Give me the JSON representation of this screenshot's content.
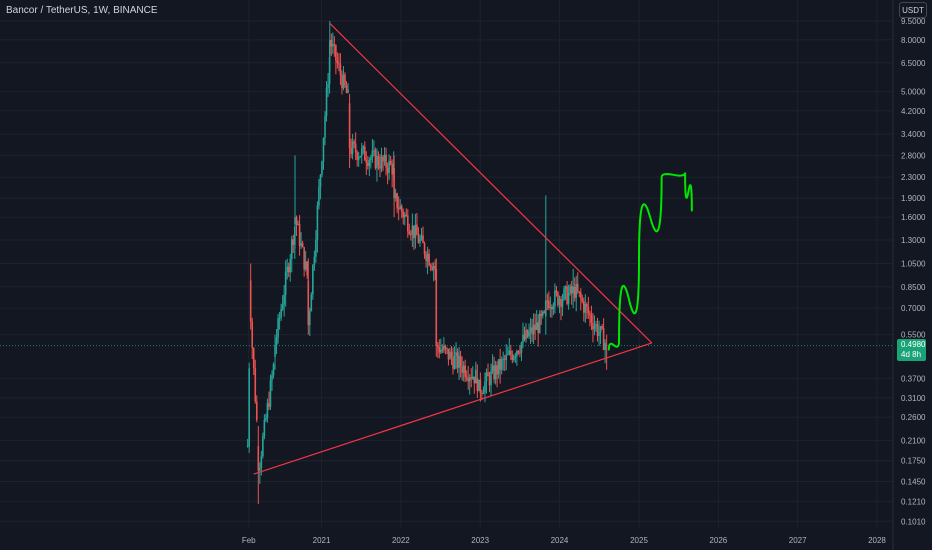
{
  "header": {
    "symbol_title": "Bancor / TetherUS, 1W, BINANCE"
  },
  "price_axis": {
    "currency": "USDT",
    "ticks": [
      "9.5000",
      "8.0000",
      "6.5000",
      "5.0000",
      "4.2000",
      "3.4000",
      "2.8000",
      "2.3000",
      "1.9000",
      "1.6000",
      "1.3000",
      "1.0500",
      "0.8500",
      "0.7000",
      "0.5500",
      "0.3700",
      "0.3100",
      "0.2600",
      "0.2100",
      "0.1750",
      "0.1450",
      "0.1210",
      "0.1010"
    ]
  },
  "time_axis": {
    "labels": [
      "Feb",
      "2021",
      "2022",
      "2023",
      "2024",
      "2025",
      "2026",
      "2027",
      "2028"
    ]
  },
  "last_price": {
    "value": "0.4980",
    "countdown": "4d 8h",
    "color": "#1aa377"
  },
  "colors": {
    "background": "#131722",
    "up_candle": "#26a69a",
    "down_candle": "#ef5350",
    "trendline": "#f23645",
    "projection": "#00e600"
  },
  "chart_data": {
    "type": "candlestick",
    "y_scale": "log",
    "ylim": [
      0.095,
      10.5
    ],
    "x_range": [
      "2020-01-01",
      "2028-06-01"
    ],
    "ohlc_weekly_approx": [
      {
        "date": "2020-01-27",
        "open": 0.2,
        "high": 0.2,
        "low": 0.2,
        "close": 0.2
      },
      {
        "date": "2020-02-10",
        "open": 0.9,
        "high": 1.05,
        "low": 0.6,
        "close": 0.62
      },
      {
        "date": "2020-03-16",
        "open": 0.2,
        "high": 0.24,
        "low": 0.118,
        "close": 0.16
      },
      {
        "date": "2020-06-01",
        "open": 0.45,
        "high": 0.55,
        "low": 0.4,
        "close": 0.5
      },
      {
        "date": "2020-09-01",
        "open": 1.5,
        "high": 2.8,
        "low": 1.2,
        "close": 1.6
      },
      {
        "date": "2020-11-01",
        "open": 0.9,
        "high": 1.1,
        "low": 0.55,
        "close": 0.6
      },
      {
        "date": "2021-02-08",
        "open": 7.0,
        "high": 9.5,
        "low": 6.0,
        "close": 8.0
      },
      {
        "date": "2021-05-10",
        "open": 4.5,
        "high": 4.9,
        "low": 2.5,
        "close": 3.0
      },
      {
        "date": "2021-12-01",
        "open": 2.5,
        "high": 2.8,
        "low": 1.6,
        "close": 1.9
      },
      {
        "date": "2022-06-13",
        "open": 1.0,
        "high": 1.1,
        "low": 0.45,
        "close": 0.5
      },
      {
        "date": "2022-12-19",
        "open": 0.37,
        "high": 0.42,
        "low": 0.31,
        "close": 0.33
      },
      {
        "date": "2023-10-30",
        "open": 0.65,
        "high": 1.95,
        "low": 0.55,
        "close": 0.75
      },
      {
        "date": "2024-03-04",
        "open": 0.8,
        "high": 1.0,
        "low": 0.7,
        "close": 0.85
      },
      {
        "date": "2024-08-05",
        "open": 0.5,
        "high": 0.55,
        "low": 0.4,
        "close": 0.498
      }
    ],
    "annotations": [
      {
        "type": "trendline",
        "from": {
          "date": "2020-02-24",
          "price": 0.155
        },
        "to": {
          "date": "2025-03-01",
          "price": 0.51
        }
      },
      {
        "type": "trendline",
        "from": {
          "date": "2021-02-08",
          "price": 9.3
        },
        "to": {
          "date": "2025-03-01",
          "price": 0.51
        }
      },
      {
        "type": "projection_path",
        "points": [
          {
            "date": "2024-08-15",
            "price": 0.48
          },
          {
            "date": "2024-10-01",
            "price": 0.52
          },
          {
            "date": "2025-01-01",
            "price": 1.1
          },
          {
            "date": "2025-04-15",
            "price": 2.3
          },
          {
            "date": "2025-08-01",
            "price": 2.4
          },
          {
            "date": "2025-09-01",
            "price": 1.7
          }
        ]
      }
    ]
  }
}
